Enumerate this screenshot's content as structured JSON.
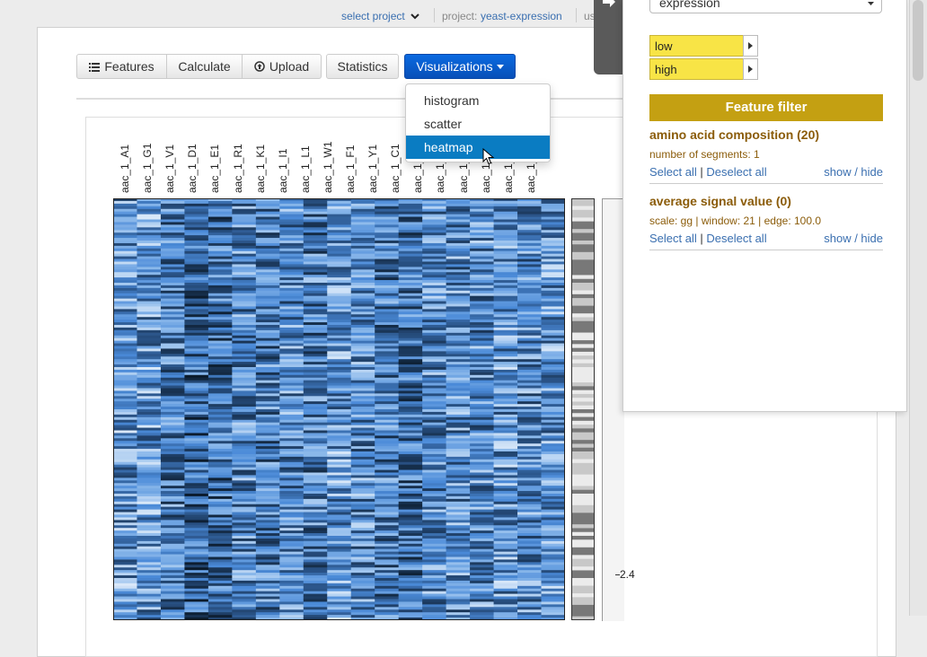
{
  "topnav": {
    "select_project": "select project",
    "project_label": "project:",
    "project_name": "yeast-expression",
    "user_fragment": "us"
  },
  "toolbar": {
    "features": "Features",
    "calculate": "Calculate",
    "upload": "Upload",
    "statistics": "Statistics",
    "visualizations": "Visualizations"
  },
  "dropdown": {
    "items": [
      "histogram",
      "scatter",
      "heatmap"
    ],
    "active": "heatmap"
  },
  "heatmap": {
    "columns": [
      "aac_1_A1",
      "aac_1_G1",
      "aac_1_V1",
      "aac_1_D1",
      "aac_1_E1",
      "aac_1_R1",
      "aac_1_K1",
      "aac_1_I1",
      "aac_1_L1",
      "aac_1_W1",
      "aac_1_F1",
      "aac_1_Y1",
      "aac_1_C1",
      "aac_1_",
      "aac_1_",
      "aac_1_",
      "aac_1_",
      "aac_1_",
      "aac_1_P1"
    ],
    "axis_tick": "2.4"
  },
  "panel": {
    "select_value": "expression",
    "low": "low",
    "high": "high",
    "filter_title": "Feature filter",
    "sections": [
      {
        "title": "amino acid composition (20)",
        "detail": "number of segments: 1",
        "select_all": "Select all",
        "divider": "|",
        "deselect_all": "Deselect all",
        "toggle": "show / hide"
      },
      {
        "title": "average signal value (0)",
        "detail": "scale: gg | window: 21 | edge: 100.0",
        "select_all": "Select all",
        "divider": "|",
        "deselect_all": "Deselect all",
        "toggle": "show / hide"
      }
    ]
  },
  "icons": {
    "list": "list-icon",
    "upload": "upload-circle-icon",
    "caret": "caret-down-icon",
    "chevron": "chevron-down-icon",
    "cursor": "mouse-pointer-icon",
    "arrow": "arrow-right-icon"
  },
  "colors": {
    "primary": "#0850b8",
    "active_item": "#0a7cc2",
    "filter_gold": "#c4a012",
    "highlight_yellow": "#f8e446",
    "heat_dark": "#0b1a2a",
    "heat_mid": "#4a8ad8",
    "heat_light": "#ffffff"
  }
}
